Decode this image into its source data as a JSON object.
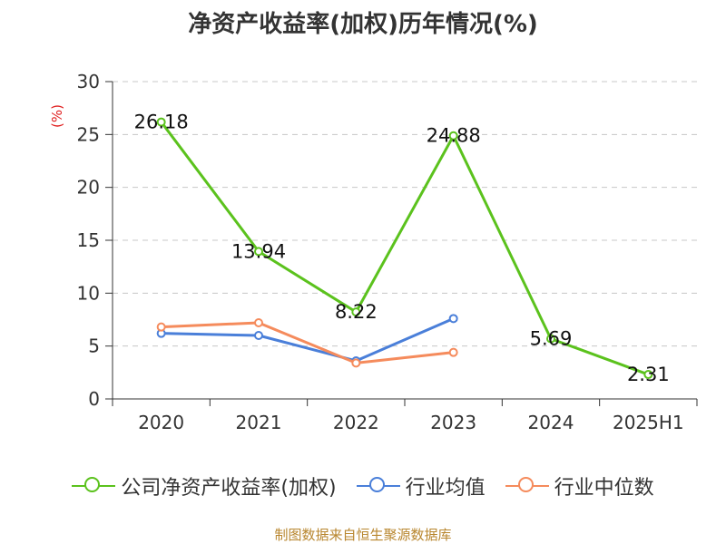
{
  "chart_data": {
    "type": "line",
    "title": "净资产收益率(加权)历年情况(%)",
    "ylabel": "(%)",
    "xlabel": "",
    "categories": [
      "2020",
      "2021",
      "2022",
      "2023",
      "2024",
      "2025H1"
    ],
    "yticks": [
      "0",
      "5",
      "10",
      "15",
      "20",
      "25",
      "30"
    ],
    "ylim": [
      0,
      30
    ],
    "grid": true,
    "legend_position": "bottom",
    "series": [
      {
        "name": "公司净资产收益率(加权)",
        "color": "#5bc21d",
        "values": [
          26.18,
          13.94,
          8.22,
          24.88,
          5.69,
          2.31
        ],
        "labels": [
          "26.18",
          "13.94",
          "8.22",
          "24.88",
          "5.69",
          "2.31"
        ]
      },
      {
        "name": "行业均值",
        "color": "#4a7fd9",
        "values": [
          6.2,
          6.0,
          3.6,
          7.6,
          null,
          null
        ]
      },
      {
        "name": "行业中位数",
        "color": "#f58b5c",
        "values": [
          6.8,
          7.2,
          3.4,
          4.4,
          null,
          null
        ]
      }
    ]
  },
  "source_note": "制图数据来自恒生聚源数据库"
}
